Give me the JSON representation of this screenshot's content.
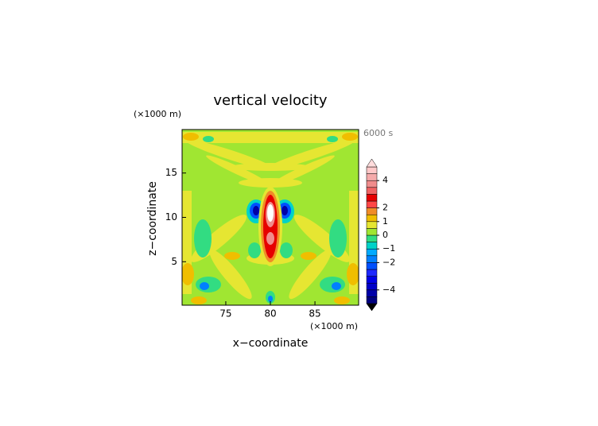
{
  "chart_data": {
    "type": "contour",
    "title": "vertical velocity",
    "time_label": "6000 s",
    "x_label": "x−coordinate",
    "y_label": "z−coordinate",
    "x_unit": "(×1000 m)",
    "y_unit": "(×1000 m)",
    "xlim": [
      70.1,
      89.9
    ],
    "xticks": [
      75,
      80,
      85
    ],
    "ylim": [
      0.1,
      19.9
    ],
    "yticks": [
      5,
      10,
      15
    ],
    "colorbar": {
      "lim": [
        -5,
        5
      ],
      "colors": [
        "#000080",
        "#0000a8",
        "#0000c8",
        "#0000e6",
        "#1e28ff",
        "#0050ff",
        "#0080ff",
        "#00aaff",
        "#00d2c8",
        "#32dc82",
        "#a0e632",
        "#e6e632",
        "#f0be00",
        "#f08c28",
        "#ff4646",
        "#e60000",
        "#f06464",
        "#f08c8c",
        "#f5aaaa",
        "#ffc8c8"
      ],
      "under_color": "#000000",
      "over_color": "#ffdcdc",
      "ticks": [
        {
          "value": -4,
          "label": "−4"
        },
        {
          "value": -2,
          "label": "−2"
        },
        {
          "value": -1,
          "label": "−1"
        },
        0,
        1,
        2,
        4
      ]
    }
  }
}
